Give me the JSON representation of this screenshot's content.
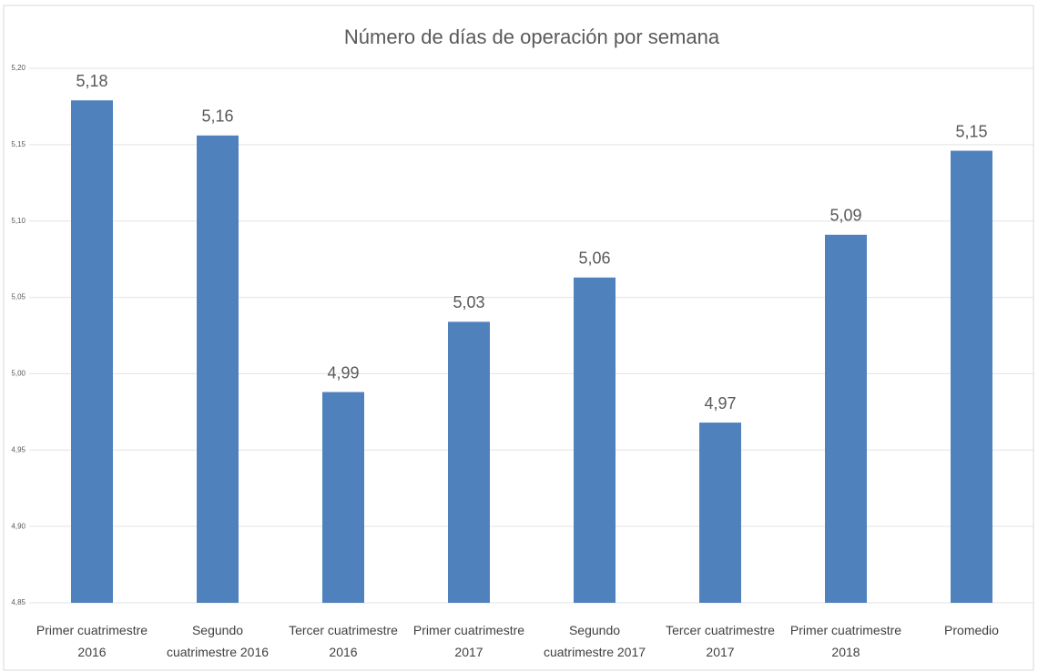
{
  "chart_data": {
    "type": "bar",
    "title": "Número de días de operación por semana",
    "categories": [
      "Primer cuatrimestre 2016",
      "Segundo cuatrimestre 2016",
      "Tercer cuatrimestre 2016",
      "Primer cuatrimestre 2017",
      "Segundo cuatrimestre 2017",
      "Tercer cuatrimestre 2017",
      "Primer cuatrimestre 2018",
      "Promedio"
    ],
    "values": [
      5.179,
      5.156,
      4.988,
      5.034,
      5.063,
      4.968,
      5.091,
      5.146
    ],
    "value_labels": [
      "5,18",
      "5,16",
      "4,99",
      "5,03",
      "5,06",
      "4,97",
      "5,09",
      "5,15"
    ],
    "color": "#4f81bd",
    "ylim": [
      4.85,
      5.2
    ],
    "yticks": [
      {
        "value": 4.85,
        "label": "4,85"
      },
      {
        "value": 4.9,
        "label": "4,90"
      },
      {
        "value": 4.95,
        "label": "4,95"
      },
      {
        "value": 5.0,
        "label": "5,00"
      },
      {
        "value": 5.05,
        "label": "5,05"
      },
      {
        "value": 5.1,
        "label": "5,10"
      },
      {
        "value": 5.15,
        "label": "5,15"
      },
      {
        "value": 5.2,
        "label": "5,20"
      }
    ],
    "grid": true
  }
}
